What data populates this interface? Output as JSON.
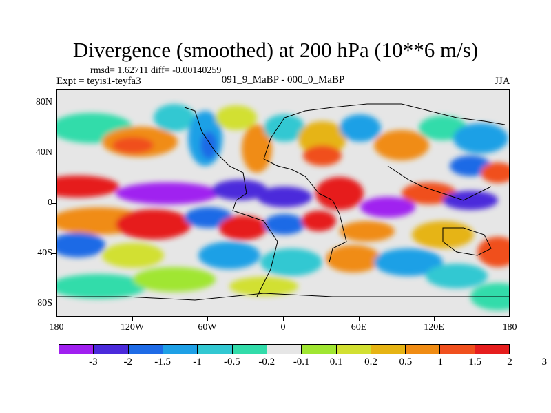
{
  "title": "Divergence (smoothed) at 200 hPa (10**6 m/s)",
  "stats": "rmsd= 1.62711 diff= -0.00140259",
  "experiment": "Expt = teyis1-teyfa3",
  "subtitle": "091_9_MaBP - 000_0_MaBP",
  "season": "JJA",
  "lat_labels": [
    "80N",
    "40N",
    "0",
    "40S",
    "80S"
  ],
  "lon_labels": [
    "180",
    "120W",
    "60W",
    "0",
    "60E",
    "120E",
    "180"
  ],
  "colorbar": {
    "colors": [
      "#a020f0",
      "#4b2adb",
      "#1e6be6",
      "#1ea0e6",
      "#32c8d2",
      "#32dcaa",
      "#e6e6e6",
      "#a0e632",
      "#d2e032",
      "#e6b414",
      "#f08c14",
      "#f0501e",
      "#e61e1e"
    ],
    "labels": [
      "-3",
      "-2",
      "-1.5",
      "-1",
      "-0.5",
      "-0.2",
      "-0.1",
      "0.1",
      "0.2",
      "0.5",
      "1",
      "1.5",
      "2",
      "3"
    ]
  }
}
